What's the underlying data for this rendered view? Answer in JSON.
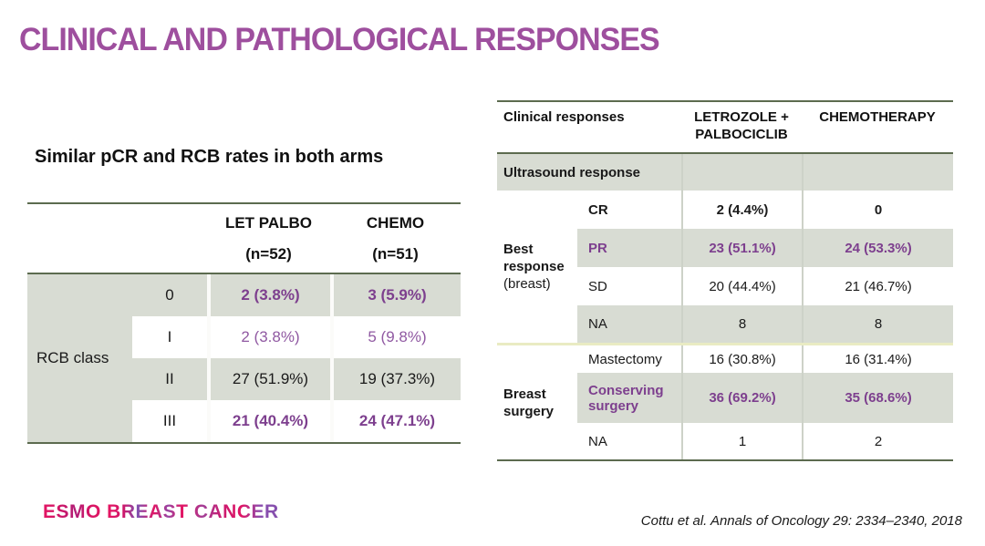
{
  "slide": {
    "title": "CLINICAL AND PATHOLOGICAL RESPONSES",
    "footer": {
      "logo_text": "ESMO BREAST CANCER",
      "citation": "Cottu et al. Annals of Oncology 29: 2334–2340, 2018"
    }
  },
  "left_table": {
    "heading": "Similar pCR and RCB rates in both arms",
    "columns": {
      "arm1_name": "LET PALBO",
      "arm1_n": "(n=52)",
      "arm2_name": "CHEMO",
      "arm2_n": "(n=51)"
    },
    "group_label": "RCB class",
    "rows": [
      {
        "label": "0",
        "arm1": "2 (3.8%)",
        "arm2": "3 (5.9%)"
      },
      {
        "label": "I",
        "arm1": "2 (3.8%)",
        "arm2": "5 (9.8%)"
      },
      {
        "label": "II",
        "arm1": "27 (51.9%)",
        "arm2": "19 (37.3%)"
      },
      {
        "label": "III",
        "arm1": "21 (40.4%)",
        "arm2": "24 (47.1%)"
      }
    ]
  },
  "right_table": {
    "header": {
      "col_label": "Clinical responses",
      "arm1_line1": "LETROZOLE +",
      "arm1_line2": "PALBOCICLIB",
      "arm2": "CHEMOTHERAPY"
    },
    "subheader": "Ultrasound response",
    "best_response": {
      "label_bold": "Best response",
      "label_normal": "(breast)",
      "rows": [
        {
          "label": "CR",
          "arm1": "2 (4.4%)",
          "arm2": "0"
        },
        {
          "label": "PR",
          "arm1": "23 (51.1%)",
          "arm2": "24 (53.3%)"
        },
        {
          "label": "SD",
          "arm1": "20 (44.4%)",
          "arm2": "21 (46.7%)"
        },
        {
          "label": "NA",
          "arm1": "8",
          "arm2": "8"
        }
      ]
    },
    "breast_surgery": {
      "label": "Breast surgery",
      "rows": [
        {
          "label": "Mastectomy",
          "arm1": "16 (30.8%)",
          "arm2": "16 (31.4%)"
        },
        {
          "label": "Conserving surgery",
          "arm1": "36 (69.2%)",
          "arm2": "35 (68.6%)"
        },
        {
          "label": "NA",
          "arm1": "1",
          "arm2": "2"
        }
      ]
    }
  },
  "colors": {
    "title_purple": "#9e4f9e",
    "highlight_purple_bold": "#7d3f8e",
    "highlight_purple_light": "#9059a2",
    "row_shading": "#d8dcd3",
    "rule_green": "#5c6b4f",
    "section_divider_yellow": "#e9ebc3",
    "logo_pink": "#e41563",
    "logo_purple": "#8450ad"
  }
}
